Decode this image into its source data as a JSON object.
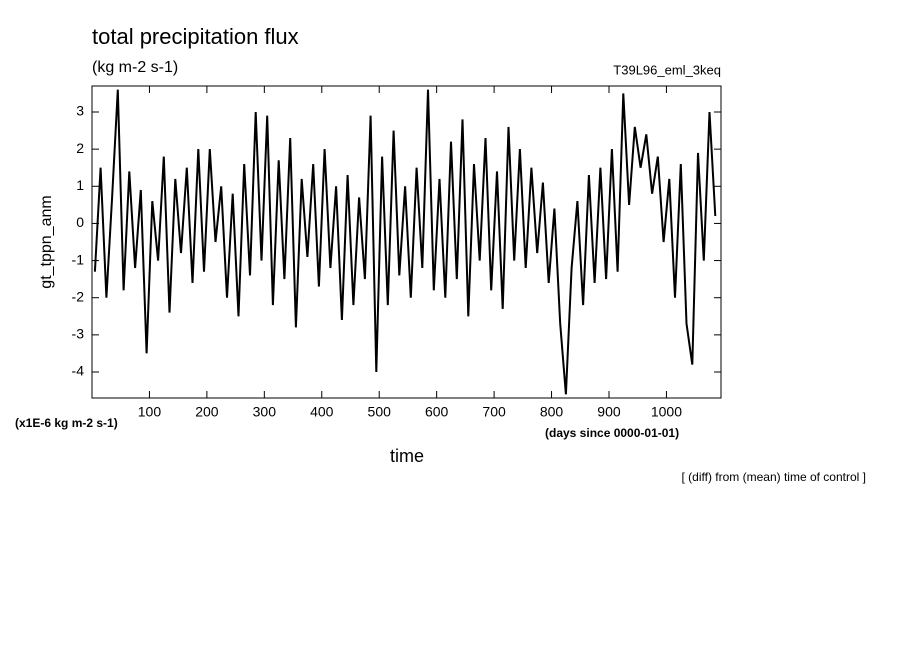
{
  "chart_data": {
    "type": "line",
    "title": "total precipitation flux",
    "subtitle": "(kg m-2 s-1)",
    "annotation": "T39L96_eml_3keq",
    "y_label": "gt_tppn_anm",
    "y_unit": "(x1E-6 kg m-2 s-1)",
    "x_label": "time",
    "x_unit": "(days since 0000-01-01)",
    "footnote": "[ (diff) from (mean) time of control ]",
    "color": "#000000",
    "xlim": [
      0,
      1095
    ],
    "xticks": [
      100,
      200,
      300,
      400,
      500,
      600,
      700,
      800,
      900,
      1000
    ],
    "ylim": [
      -4.7,
      3.7
    ],
    "yticks": [
      -4,
      -3,
      -2,
      -1,
      0,
      1,
      2,
      3
    ],
    "x": [
      5,
      15,
      25,
      35,
      45,
      55,
      65,
      75,
      85,
      95,
      105,
      115,
      125,
      135,
      145,
      155,
      165,
      175,
      185,
      195,
      205,
      215,
      225,
      235,
      245,
      255,
      265,
      275,
      285,
      295,
      305,
      315,
      325,
      335,
      345,
      355,
      365,
      375,
      385,
      395,
      405,
      415,
      425,
      435,
      445,
      455,
      465,
      475,
      485,
      495,
      505,
      515,
      525,
      535,
      545,
      555,
      565,
      575,
      585,
      595,
      605,
      615,
      625,
      635,
      645,
      655,
      665,
      675,
      685,
      695,
      705,
      715,
      725,
      735,
      745,
      755,
      765,
      775,
      785,
      795,
      805,
      815,
      825,
      835,
      845,
      855,
      865,
      875,
      885,
      895,
      905,
      915,
      925,
      935,
      945,
      955,
      965,
      975,
      985,
      995,
      1005,
      1015,
      1025,
      1035,
      1045,
      1055,
      1065,
      1075,
      1085
    ],
    "values": [
      -1.3,
      1.5,
      -2.0,
      0.7,
      3.6,
      -1.8,
      1.4,
      -1.2,
      0.9,
      -3.5,
      0.6,
      -1.0,
      1.8,
      -2.4,
      1.2,
      -0.8,
      1.5,
      -1.6,
      2.0,
      -1.3,
      2.0,
      -0.5,
      1.0,
      -2.0,
      0.8,
      -2.5,
      1.6,
      -1.4,
      3.0,
      -1.0,
      2.9,
      -2.2,
      1.7,
      -1.5,
      2.3,
      -2.8,
      1.2,
      -0.9,
      1.6,
      -1.7,
      2.0,
      -1.2,
      1.0,
      -2.6,
      1.3,
      -2.2,
      0.7,
      -1.5,
      2.9,
      -4.0,
      1.8,
      -2.2,
      2.5,
      -1.4,
      1.0,
      -2.0,
      1.5,
      -1.2,
      3.6,
      -1.8,
      1.2,
      -2.0,
      2.2,
      -1.5,
      2.8,
      -2.5,
      1.6,
      -1.0,
      2.3,
      -1.8,
      1.4,
      -2.3,
      2.6,
      -1.0,
      2.0,
      -1.2,
      1.5,
      -0.8,
      1.1,
      -1.6,
      0.4,
      -2.7,
      -4.6,
      -1.2,
      0.6,
      -2.2,
      1.3,
      -1.6,
      1.5,
      -1.5,
      2.0,
      -1.3,
      3.5,
      0.5,
      2.6,
      1.5,
      2.4,
      0.8,
      1.8,
      -0.5,
      1.2,
      -2.0,
      1.6,
      -2.7,
      -3.8,
      1.9,
      -1.0,
      3.0,
      0.2
    ]
  }
}
